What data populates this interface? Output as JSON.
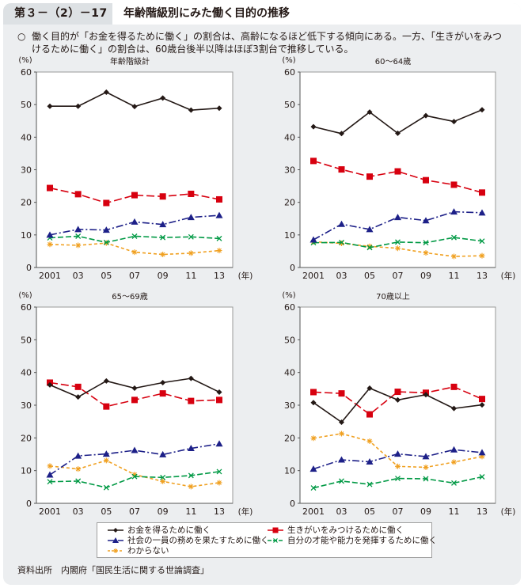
{
  "header": {
    "figure_number": "第３－（2）－17図",
    "title": "年齢階級別にみた働く目的の推移"
  },
  "summary": {
    "bullet": "○",
    "text": "働く目的が「お金を得るために働く」の割合は、高齢になるほど低下する傾向にある。一方、「生きがいをみつけるために働く」の割合は、60歳台後半以降はほぼ3割台で推移している。"
  },
  "colors": {
    "money": "#231815",
    "ikigai": "#d7000f",
    "society": "#1d2088",
    "talent": "#009944",
    "unknown": "#f0a020"
  },
  "legend": {
    "items": [
      {
        "key": "money",
        "label": "お金を得るために働く"
      },
      {
        "key": "ikigai",
        "label": "生きがいをみつけるために働く"
      },
      {
        "key": "society",
        "label": "社会の一員の務めを果たすために働く"
      },
      {
        "key": "talent",
        "label": "自分の才能や能力を発揮するために働く"
      },
      {
        "key": "unknown",
        "label": "わからない"
      }
    ]
  },
  "source": "資料出所　内閣府「国民生活に関する世論調査」",
  "chart_data": [
    {
      "type": "line",
      "title": "年齢階級計",
      "ylabel": "(%)",
      "xlabel": "(年)",
      "x": [
        "2001",
        "03",
        "05",
        "07",
        "09",
        "11",
        "13"
      ],
      "ylim": [
        0,
        60
      ],
      "yticks": [
        0,
        10,
        20,
        30,
        40,
        50,
        60
      ],
      "grid": false,
      "series": [
        {
          "key": "money",
          "name": "お金を得るために働く",
          "values": [
            49.5,
            49.5,
            53.8,
            49.4,
            52.0,
            48.3,
            48.9
          ]
        },
        {
          "key": "ikigai",
          "name": "生きがいをみつけるために働く",
          "values": [
            24.4,
            22.5,
            19.8,
            22.2,
            21.8,
            22.6,
            20.9
          ]
        },
        {
          "key": "society",
          "name": "社会の一員の務めを果たすために働く",
          "values": [
            10.0,
            11.7,
            11.5,
            14.0,
            13.2,
            15.4,
            16.0
          ]
        },
        {
          "key": "talent",
          "name": "自分の才能や能力を発揮するために働く",
          "values": [
            9.1,
            9.6,
            7.7,
            9.6,
            9.2,
            9.4,
            8.9
          ]
        },
        {
          "key": "unknown",
          "name": "わからない",
          "values": [
            7.1,
            6.8,
            7.5,
            4.7,
            4.0,
            4.4,
            5.2
          ]
        }
      ]
    },
    {
      "type": "line",
      "title": "60～64歳",
      "ylabel": "(%)",
      "xlabel": "(年)",
      "x": [
        "2001",
        "03",
        "05",
        "07",
        "09",
        "11",
        "13"
      ],
      "ylim": [
        0,
        60
      ],
      "yticks": [
        0,
        10,
        20,
        30,
        40,
        50,
        60
      ],
      "grid": false,
      "series": [
        {
          "key": "money",
          "name": "お金を得るために働く",
          "values": [
            43.2,
            41.1,
            47.7,
            41.2,
            46.6,
            44.8,
            48.4
          ]
        },
        {
          "key": "ikigai",
          "name": "生きがいをみつけるために働く",
          "values": [
            32.7,
            30.1,
            27.9,
            29.5,
            26.8,
            25.4,
            23.0
          ]
        },
        {
          "key": "society",
          "name": "社会の一員の務めを果たすために働く",
          "values": [
            8.5,
            13.3,
            11.7,
            15.4,
            14.4,
            17.1,
            16.8
          ]
        },
        {
          "key": "talent",
          "name": "自分の才能や能力を発揮するために働く",
          "values": [
            7.6,
            7.7,
            6.1,
            7.8,
            7.6,
            9.2,
            8.1
          ]
        },
        {
          "key": "unknown",
          "name": "わからない",
          "values": [
            7.9,
            7.4,
            6.5,
            5.9,
            4.5,
            3.4,
            3.6
          ]
        }
      ]
    },
    {
      "type": "line",
      "title": "65～69歳",
      "ylabel": "(%)",
      "xlabel": "(年)",
      "x": [
        "2001",
        "03",
        "05",
        "07",
        "09",
        "11",
        "13"
      ],
      "ylim": [
        0,
        60
      ],
      "yticks": [
        0,
        10,
        20,
        30,
        40,
        50,
        60
      ],
      "grid": false,
      "series": [
        {
          "key": "money",
          "name": "お金を得るために働く",
          "values": [
            36.2,
            32.5,
            37.4,
            35.2,
            36.9,
            38.2,
            34.0
          ]
        },
        {
          "key": "ikigai",
          "name": "生きがいをみつけるために働く",
          "values": [
            36.9,
            35.6,
            29.6,
            31.6,
            33.6,
            31.3,
            31.6
          ]
        },
        {
          "key": "society",
          "name": "社会の一員の務めを果たすために働く",
          "values": [
            8.7,
            14.5,
            15.1,
            16.2,
            14.9,
            16.8,
            18.2
          ]
        },
        {
          "key": "talent",
          "name": "自分の才能や能力を発揮するために働く",
          "values": [
            6.6,
            6.8,
            4.8,
            8.2,
            7.9,
            8.5,
            9.7
          ]
        },
        {
          "key": "unknown",
          "name": "わからない",
          "values": [
            11.4,
            10.5,
            13.1,
            8.8,
            6.7,
            5.1,
            6.3
          ]
        }
      ]
    },
    {
      "type": "line",
      "title": "70歳以上",
      "ylabel": "(%)",
      "xlabel": "(年)",
      "x": [
        "2001",
        "03",
        "05",
        "07",
        "09",
        "11",
        "13"
      ],
      "ylim": [
        0,
        60
      ],
      "yticks": [
        0,
        10,
        20,
        30,
        40,
        50,
        60
      ],
      "grid": false,
      "series": [
        {
          "key": "money",
          "name": "お金を得るために働く",
          "values": [
            30.8,
            24.8,
            35.2,
            31.6,
            33.2,
            29.0,
            30.1
          ]
        },
        {
          "key": "ikigai",
          "name": "生きがいをみつけるために働く",
          "values": [
            34.0,
            33.6,
            27.2,
            34.1,
            33.8,
            35.6,
            31.9
          ]
        },
        {
          "key": "society",
          "name": "社会の一員の務めを果たすために働く",
          "values": [
            10.5,
            13.3,
            12.7,
            15.1,
            14.3,
            16.4,
            15.5
          ]
        },
        {
          "key": "talent",
          "name": "自分の才能や能力を発揮するために働く",
          "values": [
            4.7,
            6.8,
            5.8,
            7.6,
            7.5,
            6.2,
            8.1
          ]
        },
        {
          "key": "unknown",
          "name": "わからない",
          "values": [
            19.9,
            21.3,
            19.0,
            11.3,
            11.0,
            12.6,
            14.3
          ]
        }
      ]
    }
  ]
}
